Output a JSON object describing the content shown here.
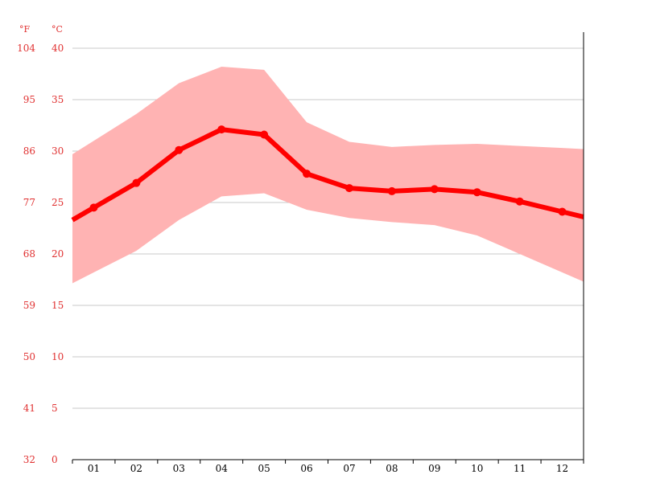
{
  "chart_data": {
    "type": "line",
    "x": [
      "01",
      "02",
      "03",
      "04",
      "05",
      "06",
      "07",
      "08",
      "09",
      "10",
      "11",
      "12"
    ],
    "series": [
      {
        "values": [
          24.5,
          26.9,
          30.1,
          32.1,
          31.6,
          27.8,
          26.4,
          26.1,
          26.3,
          26.0,
          25.1,
          24.1
        ]
      },
      {
        "values": [
          31.0,
          33.6,
          36.6,
          38.2,
          37.9,
          32.8,
          30.9,
          30.4,
          30.6,
          30.7,
          30.5,
          30.3
        ]
      },
      {
        "values": [
          18.2,
          20.3,
          23.3,
          25.6,
          25.9,
          24.3,
          23.5,
          23.1,
          22.8,
          21.8,
          20.0,
          18.2
        ]
      }
    ],
    "ylim": [
      0,
      40
    ],
    "celsius_ticks": [
      "0",
      "5",
      "10",
      "15",
      "20",
      "25",
      "30",
      "35",
      "40"
    ],
    "fahrenheit_ticks": [
      "32",
      "41",
      "50",
      "59",
      "68",
      "77",
      "86",
      "95",
      "104"
    ],
    "unit_labels": {
      "fahrenheit": "°F",
      "celsius": "°C"
    },
    "grid": true,
    "legend": "none",
    "colors": {
      "line": "#ff0000",
      "band": "#ffb3b3",
      "axis_text": "#e03030"
    }
  }
}
